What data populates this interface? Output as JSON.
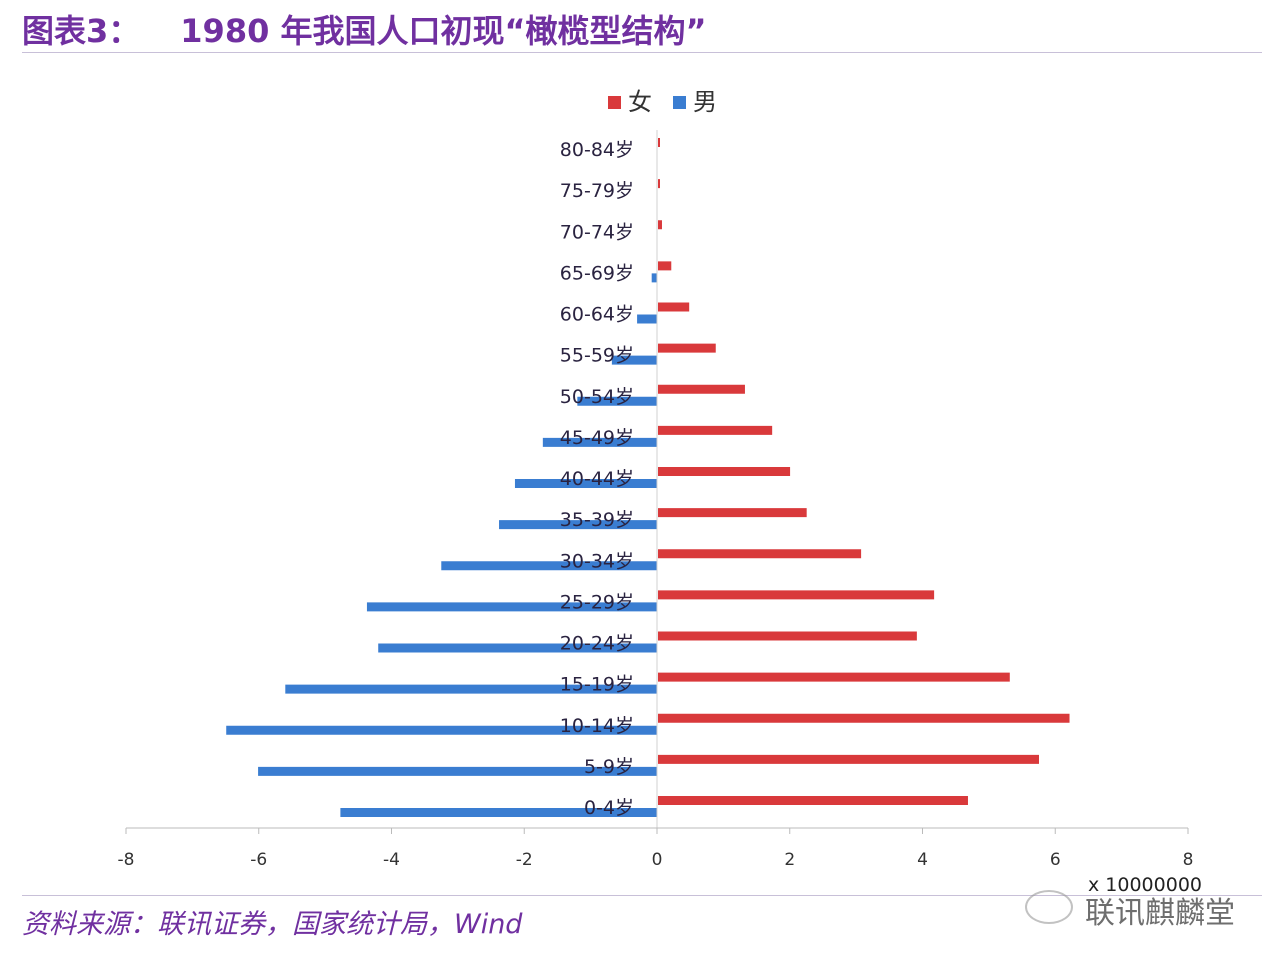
{
  "header": {
    "figure_label": "图表3：",
    "title": "1980 年我国人口初现“橄榄型结构”"
  },
  "footer": {
    "source": "资料来源：联讯证券，国家统计局，Wind",
    "watermark": "联讯麒麟堂"
  },
  "chart_data": {
    "type": "bar",
    "orientation": "horizontal",
    "subtype": "population pyramid",
    "categories": [
      "0-4岁",
      "5-9岁",
      "10-14岁",
      "15-19岁",
      "20-24岁",
      "25-29岁",
      "30-34岁",
      "35-39岁",
      "40-44岁",
      "45-49岁",
      "50-54岁",
      "55-59岁",
      "60-64岁",
      "65-69岁",
      "70-74岁",
      "75-79岁",
      "80-84岁"
    ],
    "series": [
      {
        "name": "女",
        "color": "#d9393b",
        "values": [
          4.67,
          5.74,
          6.2,
          5.3,
          3.9,
          4.16,
          3.06,
          2.24,
          1.99,
          1.72,
          1.31,
          0.87,
          0.47,
          0.2,
          0.06,
          0.03,
          0.03
        ]
      },
      {
        "name": "男",
        "color": "#3a7dd1",
        "values": [
          -4.77,
          -6.01,
          -6.49,
          -5.6,
          -4.2,
          -4.37,
          -3.25,
          -2.38,
          -2.14,
          -1.72,
          -1.2,
          -0.68,
          -0.3,
          -0.08,
          0,
          0,
          0
        ]
      }
    ],
    "xlim": [
      -8,
      8
    ],
    "xticks": [
      "-8",
      "-6",
      "-4",
      "-2",
      "0",
      "2",
      "4",
      "6",
      "8"
    ],
    "xscale_label": "x 10000000",
    "legend_position": "top",
    "grid": false
  }
}
